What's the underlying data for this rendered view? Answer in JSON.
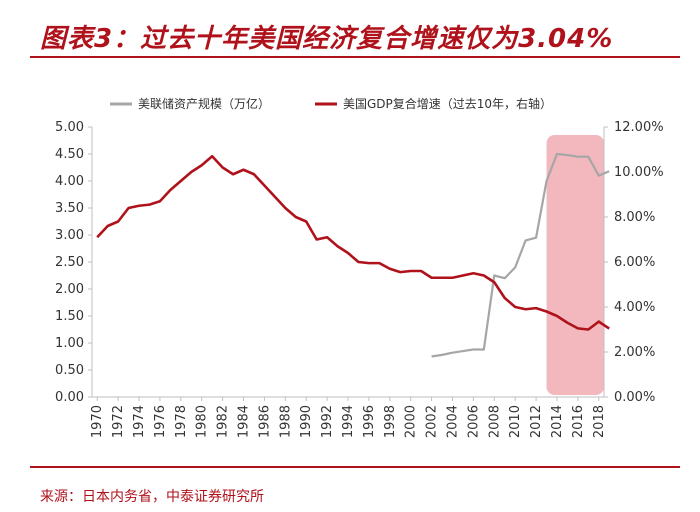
{
  "header": {
    "title": "图表3：过去十年美国经济复合增速仅为3.04%"
  },
  "footer": {
    "source": "来源：日本内务省，中泰证券研究所"
  },
  "colors": {
    "accent": "#b0121b",
    "series_left": "#a6a6a6",
    "series_right": "#b0121b",
    "highlight": "#f2b8bd"
  },
  "chart_data": {
    "type": "line",
    "title": "",
    "legend_position": "top",
    "grid": false,
    "x_ticks": [
      "1970",
      "1972",
      "1974",
      "1976",
      "1978",
      "1980",
      "1982",
      "1984",
      "1986",
      "1988",
      "1990",
      "1992",
      "1994",
      "1996",
      "1998",
      "2000",
      "2002",
      "2004",
      "2006",
      "2008",
      "2010",
      "2012",
      "2014",
      "2016",
      "2018"
    ],
    "xlim": [
      1970,
      2019
    ],
    "ylim_left": [
      0,
      5
    ],
    "ylim_right": [
      0,
      12
    ],
    "y_ticks_left": [
      "0.00",
      "0.50",
      "1.00",
      "1.50",
      "2.00",
      "2.50",
      "3.00",
      "3.50",
      "4.00",
      "4.50",
      "5.00"
    ],
    "y_ticks_right": [
      "0.00%",
      "2.00%",
      "4.00%",
      "6.00%",
      "8.00%",
      "10.00%",
      "12.00%"
    ],
    "highlight_range": [
      2013.5,
      2019
    ],
    "series": [
      {
        "name": "美联储资产规模（万亿）",
        "axis": "left",
        "color": "#a6a6a6",
        "x": [
          2002,
          2003,
          2004,
          2005,
          2006,
          2007,
          2008,
          2009,
          2010,
          2011,
          2012,
          2013,
          2014,
          2015,
          2016,
          2017,
          2018,
          2019
        ],
        "y": [
          0.75,
          0.78,
          0.82,
          0.85,
          0.88,
          0.88,
          2.25,
          2.2,
          2.4,
          2.9,
          2.95,
          4.0,
          4.5,
          4.48,
          4.45,
          4.45,
          4.1,
          4.18
        ]
      },
      {
        "name": "美国GDP复合增速（过去10年，右轴）",
        "axis": "right",
        "color": "#b0121b",
        "x": [
          1970,
          1971,
          1972,
          1973,
          1974,
          1975,
          1976,
          1977,
          1978,
          1979,
          1980,
          1981,
          1982,
          1983,
          1984,
          1985,
          1986,
          1987,
          1988,
          1989,
          1990,
          1991,
          1992,
          1993,
          1994,
          1995,
          1996,
          1997,
          1998,
          1999,
          2000,
          2001,
          2002,
          2003,
          2004,
          2005,
          2006,
          2007,
          2008,
          2009,
          2010,
          2011,
          2012,
          2013,
          2014,
          2015,
          2016,
          2017,
          2018,
          2019
        ],
        "y": [
          7.1,
          7.6,
          7.8,
          8.4,
          8.5,
          8.55,
          8.7,
          9.2,
          9.6,
          10.0,
          10.3,
          10.7,
          10.2,
          9.9,
          10.1,
          9.9,
          9.4,
          8.9,
          8.4,
          8.0,
          7.8,
          7.0,
          7.1,
          6.7,
          6.4,
          6.0,
          5.95,
          5.95,
          5.7,
          5.55,
          5.6,
          5.6,
          5.3,
          5.3,
          5.3,
          5.4,
          5.5,
          5.4,
          5.1,
          4.4,
          4.0,
          3.9,
          3.95,
          3.8,
          3.6,
          3.3,
          3.05,
          3.0,
          3.35,
          3.04
        ]
      }
    ]
  }
}
